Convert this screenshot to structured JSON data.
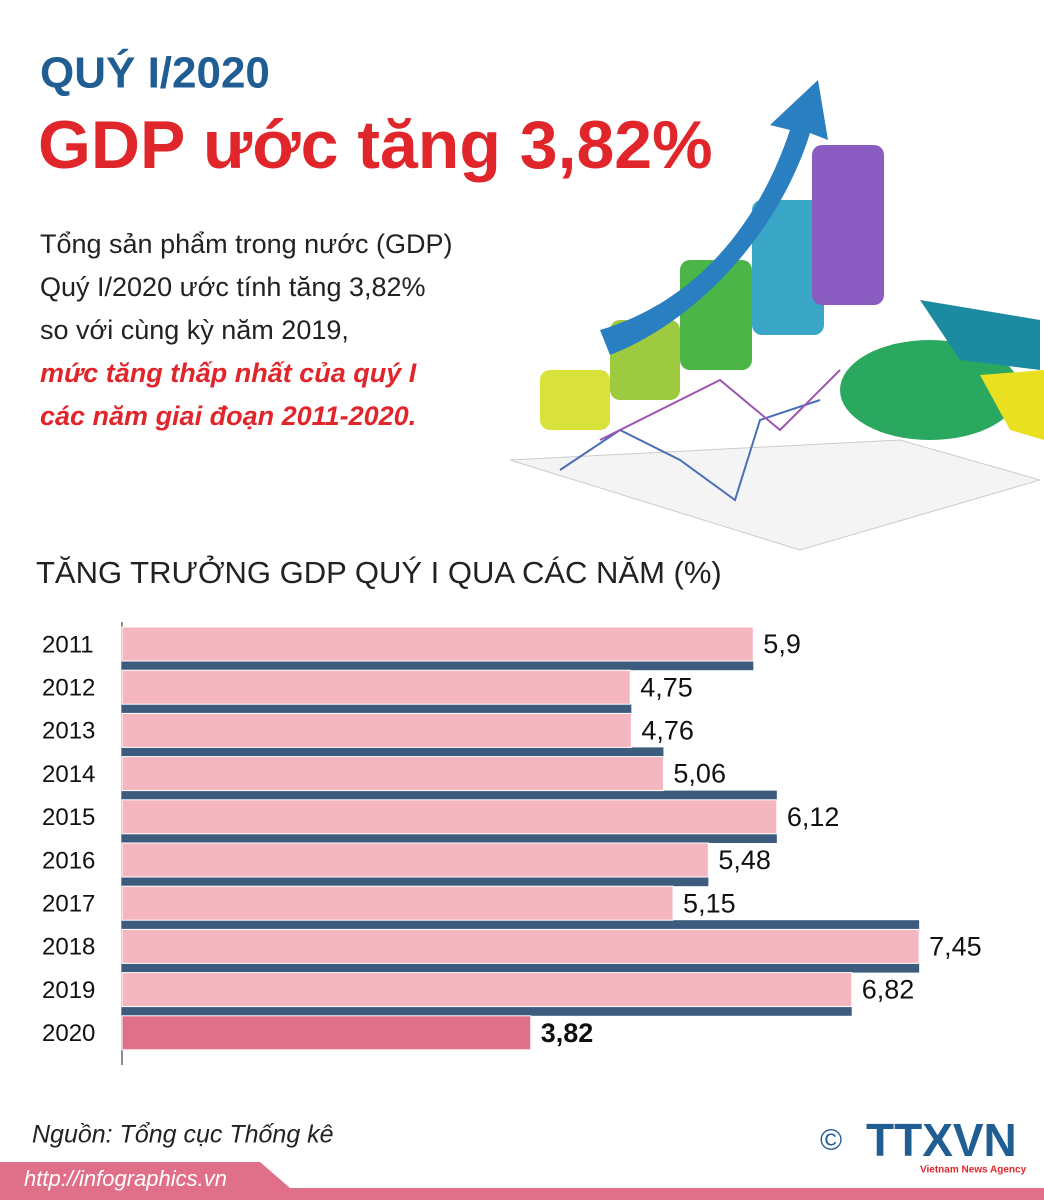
{
  "header": {
    "kicker": "QUÝ I/2020",
    "title": "GDP ước tăng 3,82%",
    "body": [
      "Tổng sản phẩm trong nước (GDP)",
      "Quý I/2020 ước tính tăng 3,82%",
      "so với cùng kỳ năm 2019,"
    ],
    "highlight": [
      "mức tăng thấp nhất của quý I",
      "các năm giai đoạn 2011-2020."
    ]
  },
  "chart_data": {
    "type": "bar",
    "orientation": "horizontal",
    "title": "TĂNG TRƯỞNG GDP QUÝ I QUA CÁC NĂM (%)",
    "categories": [
      "2011",
      "2012",
      "2013",
      "2014",
      "2015",
      "2016",
      "2017",
      "2018",
      "2019",
      "2020"
    ],
    "values": [
      5.9,
      4.75,
      4.76,
      5.06,
      6.12,
      5.48,
      5.15,
      7.45,
      6.82,
      3.82
    ],
    "value_labels": [
      "5,9",
      "4,75",
      "4,76",
      "5,06",
      "6,12",
      "5,48",
      "5,15",
      "7,45",
      "6,82",
      "3,82"
    ],
    "colors": [
      "#f4b6bf",
      "#f4b6bf",
      "#f4b6bf",
      "#f4b6bf",
      "#f4b6bf",
      "#f4b6bf",
      "#f4b6bf",
      "#f4b6bf",
      "#f4b6bf",
      "#e0708a"
    ]
  },
  "footer": {
    "source": "Nguồn: Tổng cục Thống kê",
    "url": "http://infographics.vn",
    "logo": "TTXVN",
    "agency": "Vietnam News Agency",
    "copyright": "©"
  }
}
